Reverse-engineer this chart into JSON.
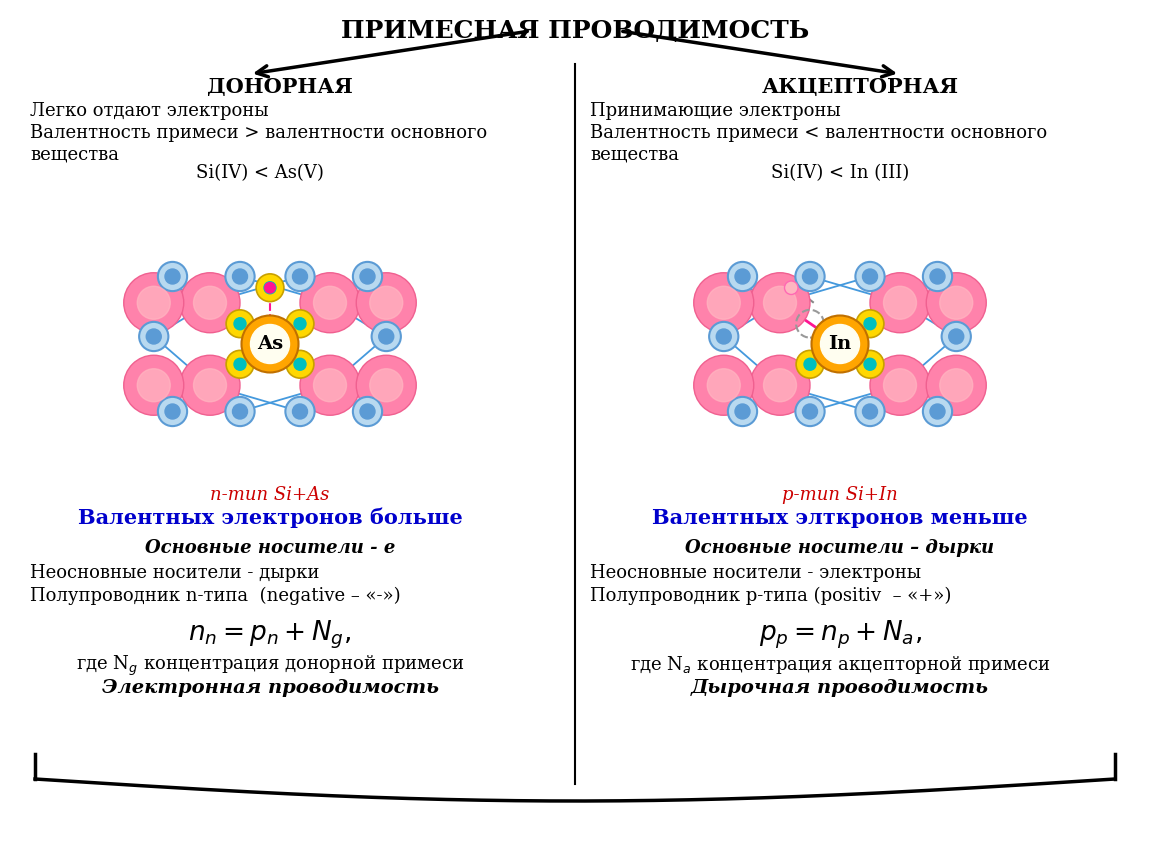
{
  "title": "ПРИМЕСНАЯ ПРОВОДИМОСТЬ",
  "left_header": "ДОНОРНАЯ",
  "right_header": "АКЦЕПТОРНАЯ",
  "left_desc1": "Легко отдают электроны",
  "left_desc2": "Валентность примеси > валентности основного",
  "left_desc2b": "вещества",
  "right_desc1": "Принимающие электроны",
  "right_desc2": "Валентность примеси < валентности основного",
  "right_desc2b": "вещества",
  "left_formula_label": "Si(IV) < As(V)",
  "right_formula_label": "Si(IV) < In (III)",
  "left_type": "n-тип Si+As",
  "left_type2": "Валентных электронов больше",
  "right_type": "p-тип Si+In",
  "right_type2": "Валентных элткронов меньше",
  "left_carrier1": "Основные носители - е",
  "left_carrier2": "Неосновные носители - дырки",
  "left_carrier3": "Полупроводник n-типа  (negative – «-»)",
  "left_formula": "$n_n= p_n+N_g,$",
  "left_formula_text": "где N$_g$ концентрация донорной примеси",
  "left_footer": "Электронная проводимость",
  "right_carrier1": "Основные носители – дырки",
  "right_carrier2": "Неосновные носители - электроны",
  "right_carrier3": "Полупроводник p-типа (positiv  – «+»)",
  "right_formula": "$p_p = n_p +N_a,$",
  "right_formula_text": "где N$_a$ концентрация акцепторной примеси",
  "right_footer": "Дырочная проводимость",
  "bg_color": "#ffffff",
  "text_color": "#000000"
}
